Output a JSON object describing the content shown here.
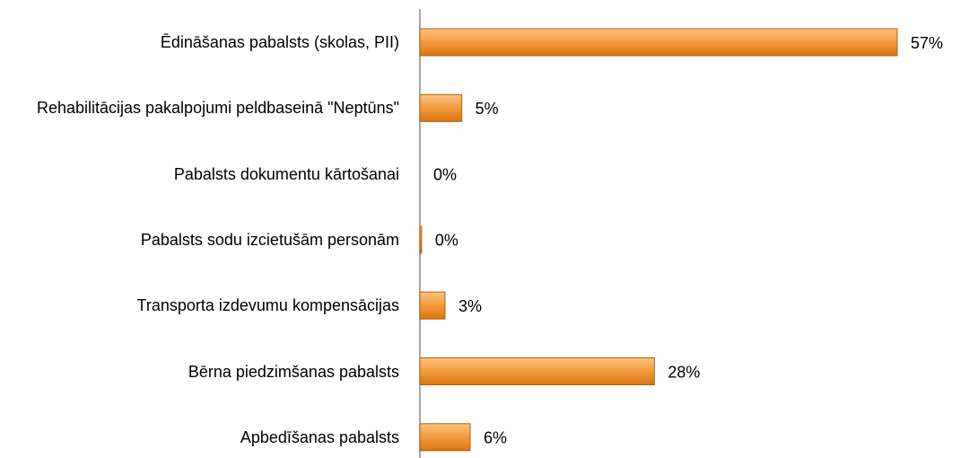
{
  "chart_data": {
    "type": "bar",
    "orientation": "horizontal",
    "categories": [
      "Ēdināšanas pabalsts (skolas, PII)",
      "Rehabilitācijas pakalpojumi peldbaseinā \"Neptūns\"",
      "Pabalsts dokumentu kārtošanai",
      "Pabalsts sodu izcietušām personām",
      "Transporta izdevumu kompensācijas",
      "Bērna piedzimšanas pabalsts",
      "Apbedīšanas pabalsts"
    ],
    "values": [
      57,
      5,
      0,
      0.2,
      3,
      28,
      6
    ],
    "value_labels": [
      "57%",
      "5%",
      "0%",
      "0%",
      "3%",
      "28%",
      "6%"
    ],
    "color": "#f39a3c",
    "xlim": [
      0,
      60
    ]
  }
}
